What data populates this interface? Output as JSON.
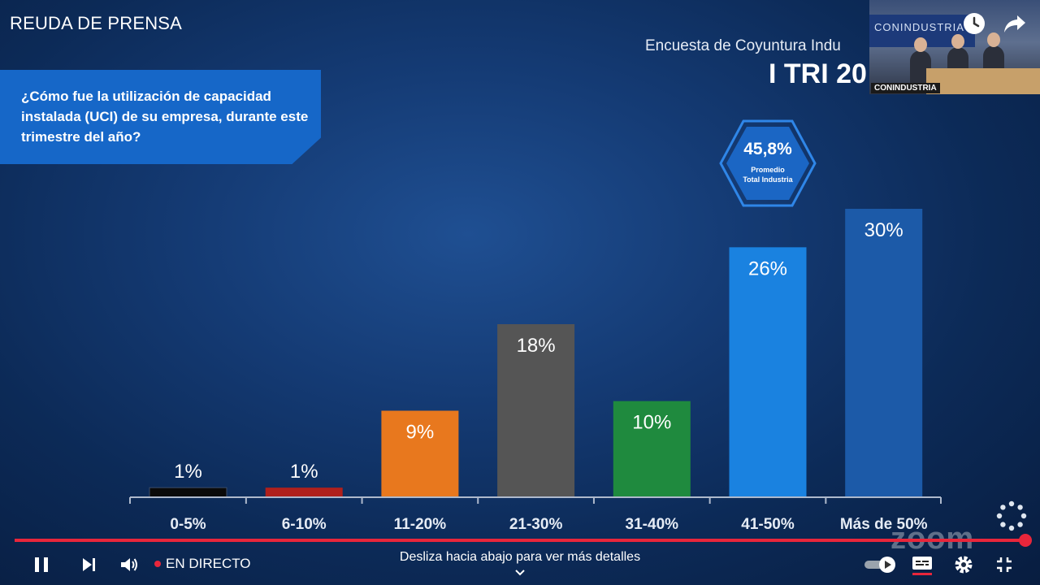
{
  "video": {
    "title": "REUDA DE PRENSA"
  },
  "slide": {
    "survey_title": "Encuesta de Coyuntura Indu",
    "period": "I TRI 20",
    "question": "¿Cómo fue la utilización de capacidad instalada (UCI) de su empresa, durante este trimestre del año?",
    "badge_value": "45,8%",
    "badge_label_line1": "Promedio",
    "badge_label_line2": "Total Industria"
  },
  "chart_data": {
    "type": "bar",
    "categories": [
      "0-5%",
      "6-10%",
      "11-20%",
      "21-30%",
      "31-40%",
      "41-50%",
      "Más de 50%"
    ],
    "values": [
      1,
      1,
      9,
      18,
      10,
      26,
      30
    ],
    "labels": [
      "1%",
      "1%",
      "9%",
      "18%",
      "10%",
      "26%",
      "30%"
    ],
    "colors": [
      "#0a0a0a",
      "#b0201c",
      "#e8781e",
      "#555555",
      "#1f8a3e",
      "#1a82e0",
      "#1c5aa8"
    ],
    "ylim": [
      0,
      30
    ],
    "grid": false
  },
  "cam": {
    "banner_text": "CONINDUSTRIA",
    "label": "CONINDUSTRIA"
  },
  "player": {
    "live_label": "EN DIRECTO",
    "hint": "Desliza hacia abajo para ver más detalles",
    "watermark": "zoom",
    "progress": 1.0
  },
  "icons": {
    "pause": "pause-icon",
    "next": "next-icon",
    "volume": "volume-icon",
    "autoplay": "autoplay-toggle-icon",
    "captions": "captions-icon",
    "settings": "gear-icon",
    "exit_fullscreen": "exit-fullscreen-icon",
    "watch_later": "clock-icon",
    "share": "share-icon"
  }
}
